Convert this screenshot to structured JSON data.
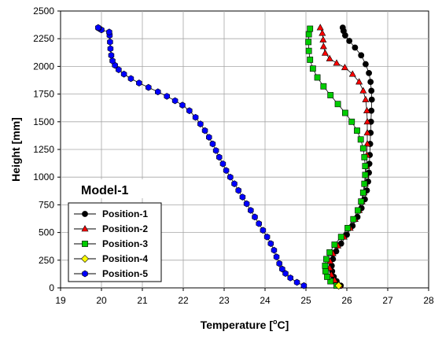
{
  "chart_data": {
    "type": "scatter",
    "title": "",
    "annotation": "Model-1",
    "xlabel": "Temperature [°C]",
    "xlabel_main": "Temperature [",
    "xlabel_sup": "o",
    "xlabel_end": "C]",
    "ylabel": "Height [mm]",
    "xlim": [
      19,
      28
    ],
    "ylim": [
      0,
      2500
    ],
    "xticks": [
      19,
      20,
      21,
      22,
      23,
      24,
      25,
      26,
      27,
      28
    ],
    "yticks": [
      0,
      250,
      500,
      750,
      1000,
      1250,
      1500,
      1750,
      2000,
      2250,
      2500
    ],
    "grid": true,
    "legend_position": "lower-left",
    "series": [
      {
        "name": "Position-1",
        "marker": "circle",
        "color": "#000000",
        "points": [
          [
            25.85,
            20
          ],
          [
            25.75,
            60
          ],
          [
            25.68,
            100
          ],
          [
            25.64,
            150
          ],
          [
            25.63,
            200
          ],
          [
            25.66,
            260
          ],
          [
            25.74,
            330
          ],
          [
            25.86,
            400
          ],
          [
            26.0,
            480
          ],
          [
            26.14,
            560
          ],
          [
            26.26,
            640
          ],
          [
            26.36,
            720
          ],
          [
            26.44,
            800
          ],
          [
            26.49,
            880
          ],
          [
            26.52,
            960
          ],
          [
            26.54,
            1040
          ],
          [
            26.55,
            1120
          ],
          [
            26.56,
            1200
          ],
          [
            26.57,
            1300
          ],
          [
            26.58,
            1400
          ],
          [
            26.59,
            1500
          ],
          [
            26.6,
            1600
          ],
          [
            26.61,
            1700
          ],
          [
            26.6,
            1780
          ],
          [
            26.58,
            1860
          ],
          [
            26.54,
            1940
          ],
          [
            26.46,
            2020
          ],
          [
            26.35,
            2100
          ],
          [
            26.2,
            2170
          ],
          [
            26.06,
            2230
          ],
          [
            25.96,
            2280
          ],
          [
            25.92,
            2320
          ],
          [
            25.9,
            2350
          ]
        ]
      },
      {
        "name": "Position-2",
        "marker": "triangle",
        "color": "#ff0000",
        "points": [
          [
            25.82,
            20
          ],
          [
            25.7,
            70
          ],
          [
            25.62,
            120
          ],
          [
            25.58,
            180
          ],
          [
            25.59,
            240
          ],
          [
            25.66,
            310
          ],
          [
            25.78,
            380
          ],
          [
            25.93,
            460
          ],
          [
            26.08,
            540
          ],
          [
            26.2,
            620
          ],
          [
            26.3,
            700
          ],
          [
            26.37,
            780
          ],
          [
            26.42,
            860
          ],
          [
            26.45,
            940
          ],
          [
            26.47,
            1020
          ],
          [
            26.48,
            1100
          ],
          [
            26.49,
            1200
          ],
          [
            26.5,
            1300
          ],
          [
            26.5,
            1400
          ],
          [
            26.5,
            1500
          ],
          [
            26.49,
            1600
          ],
          [
            26.46,
            1700
          ],
          [
            26.4,
            1780
          ],
          [
            26.3,
            1860
          ],
          [
            26.14,
            1930
          ],
          [
            25.95,
            1990
          ],
          [
            25.75,
            2030
          ],
          [
            25.58,
            2070
          ],
          [
            25.47,
            2120
          ],
          [
            25.43,
            2180
          ],
          [
            25.42,
            2240
          ],
          [
            25.4,
            2300
          ],
          [
            25.35,
            2350
          ]
        ]
      },
      {
        "name": "Position-3",
        "marker": "square",
        "color": "#00cc00",
        "points": [
          [
            25.75,
            20
          ],
          [
            25.6,
            60
          ],
          [
            25.52,
            100
          ],
          [
            25.48,
            150
          ],
          [
            25.47,
            200
          ],
          [
            25.5,
            260
          ],
          [
            25.58,
            320
          ],
          [
            25.7,
            390
          ],
          [
            25.86,
            460
          ],
          [
            26.02,
            540
          ],
          [
            26.16,
            620
          ],
          [
            26.27,
            700
          ],
          [
            26.35,
            780
          ],
          [
            26.4,
            860
          ],
          [
            26.43,
            940
          ],
          [
            26.45,
            1020
          ],
          [
            26.45,
            1100
          ],
          [
            26.43,
            1180
          ],
          [
            26.4,
            1260
          ],
          [
            26.34,
            1340
          ],
          [
            26.25,
            1420
          ],
          [
            26.12,
            1500
          ],
          [
            25.96,
            1580
          ],
          [
            25.78,
            1660
          ],
          [
            25.6,
            1740
          ],
          [
            25.43,
            1820
          ],
          [
            25.28,
            1900
          ],
          [
            25.17,
            1980
          ],
          [
            25.1,
            2060
          ],
          [
            25.07,
            2140
          ],
          [
            25.06,
            2220
          ],
          [
            25.07,
            2290
          ],
          [
            25.1,
            2340
          ]
        ]
      },
      {
        "name": "Position-4",
        "marker": "diamond",
        "color": "#ffff00",
        "points": [
          [
            25.8,
            20
          ]
        ]
      },
      {
        "name": "Position-5",
        "marker": "hexagon",
        "color": "#0000ff",
        "points": [
          [
            24.95,
            20
          ],
          [
            24.78,
            50
          ],
          [
            24.62,
            90
          ],
          [
            24.5,
            130
          ],
          [
            24.42,
            170
          ],
          [
            24.35,
            220
          ],
          [
            24.28,
            280
          ],
          [
            24.22,
            340
          ],
          [
            24.14,
            400
          ],
          [
            24.05,
            460
          ],
          [
            23.95,
            520
          ],
          [
            23.85,
            580
          ],
          [
            23.75,
            640
          ],
          [
            23.65,
            700
          ],
          [
            23.55,
            760
          ],
          [
            23.45,
            820
          ],
          [
            23.35,
            880
          ],
          [
            23.25,
            940
          ],
          [
            23.15,
            1000
          ],
          [
            23.05,
            1060
          ],
          [
            22.97,
            1120
          ],
          [
            22.88,
            1180
          ],
          [
            22.8,
            1240
          ],
          [
            22.72,
            1300
          ],
          [
            22.63,
            1360
          ],
          [
            22.53,
            1420
          ],
          [
            22.42,
            1480
          ],
          [
            22.3,
            1540
          ],
          [
            22.15,
            1600
          ],
          [
            21.98,
            1650
          ],
          [
            21.8,
            1690
          ],
          [
            21.6,
            1730
          ],
          [
            21.38,
            1770
          ],
          [
            21.15,
            1810
          ],
          [
            20.92,
            1850
          ],
          [
            20.72,
            1890
          ],
          [
            20.55,
            1930
          ],
          [
            20.42,
            1970
          ],
          [
            20.33,
            2010
          ],
          [
            20.27,
            2050
          ],
          [
            20.24,
            2100
          ],
          [
            20.22,
            2160
          ],
          [
            20.21,
            2220
          ],
          [
            20.2,
            2280
          ],
          [
            20.19,
            2310
          ],
          [
            20.0,
            2330
          ],
          [
            19.93,
            2345
          ],
          [
            19.92,
            2350
          ]
        ]
      }
    ]
  }
}
